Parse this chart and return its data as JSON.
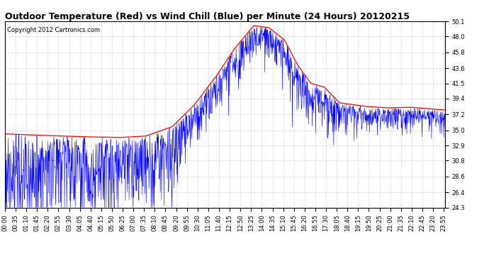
{
  "title": "Outdoor Temperature (Red) vs Wind Chill (Blue) per Minute (24 Hours) 20120215",
  "copyright": "Copyright 2012 Cartronics.com",
  "ylim": [
    24.3,
    50.1
  ],
  "yticks": [
    24.3,
    26.4,
    28.6,
    30.8,
    32.9,
    35.0,
    37.2,
    39.4,
    41.5,
    43.6,
    45.8,
    48.0,
    50.1
  ],
  "bg_color": "#ffffff",
  "grid_color": "#c8c8c8",
  "temp_color": "red",
  "wind_chill_color": "blue",
  "title_fontsize": 9,
  "tick_fontsize": 6,
  "copyright_fontsize": 6,
  "n_minutes": 1440,
  "x_tick_interval": 35,
  "x_tick_labels": [
    "00:00",
    "00:35",
    "01:10",
    "01:45",
    "02:20",
    "02:55",
    "03:30",
    "04:05",
    "04:40",
    "05:15",
    "05:50",
    "06:25",
    "07:00",
    "07:35",
    "08:10",
    "08:45",
    "09:20",
    "09:55",
    "10:30",
    "11:05",
    "11:40",
    "12:15",
    "12:50",
    "13:25",
    "14:00",
    "14:35",
    "15:10",
    "15:45",
    "16:20",
    "16:55",
    "17:30",
    "18:05",
    "18:40",
    "19:15",
    "19:50",
    "20:25",
    "21:00",
    "21:35",
    "22:10",
    "22:45",
    "23:20",
    "23:55"
  ]
}
